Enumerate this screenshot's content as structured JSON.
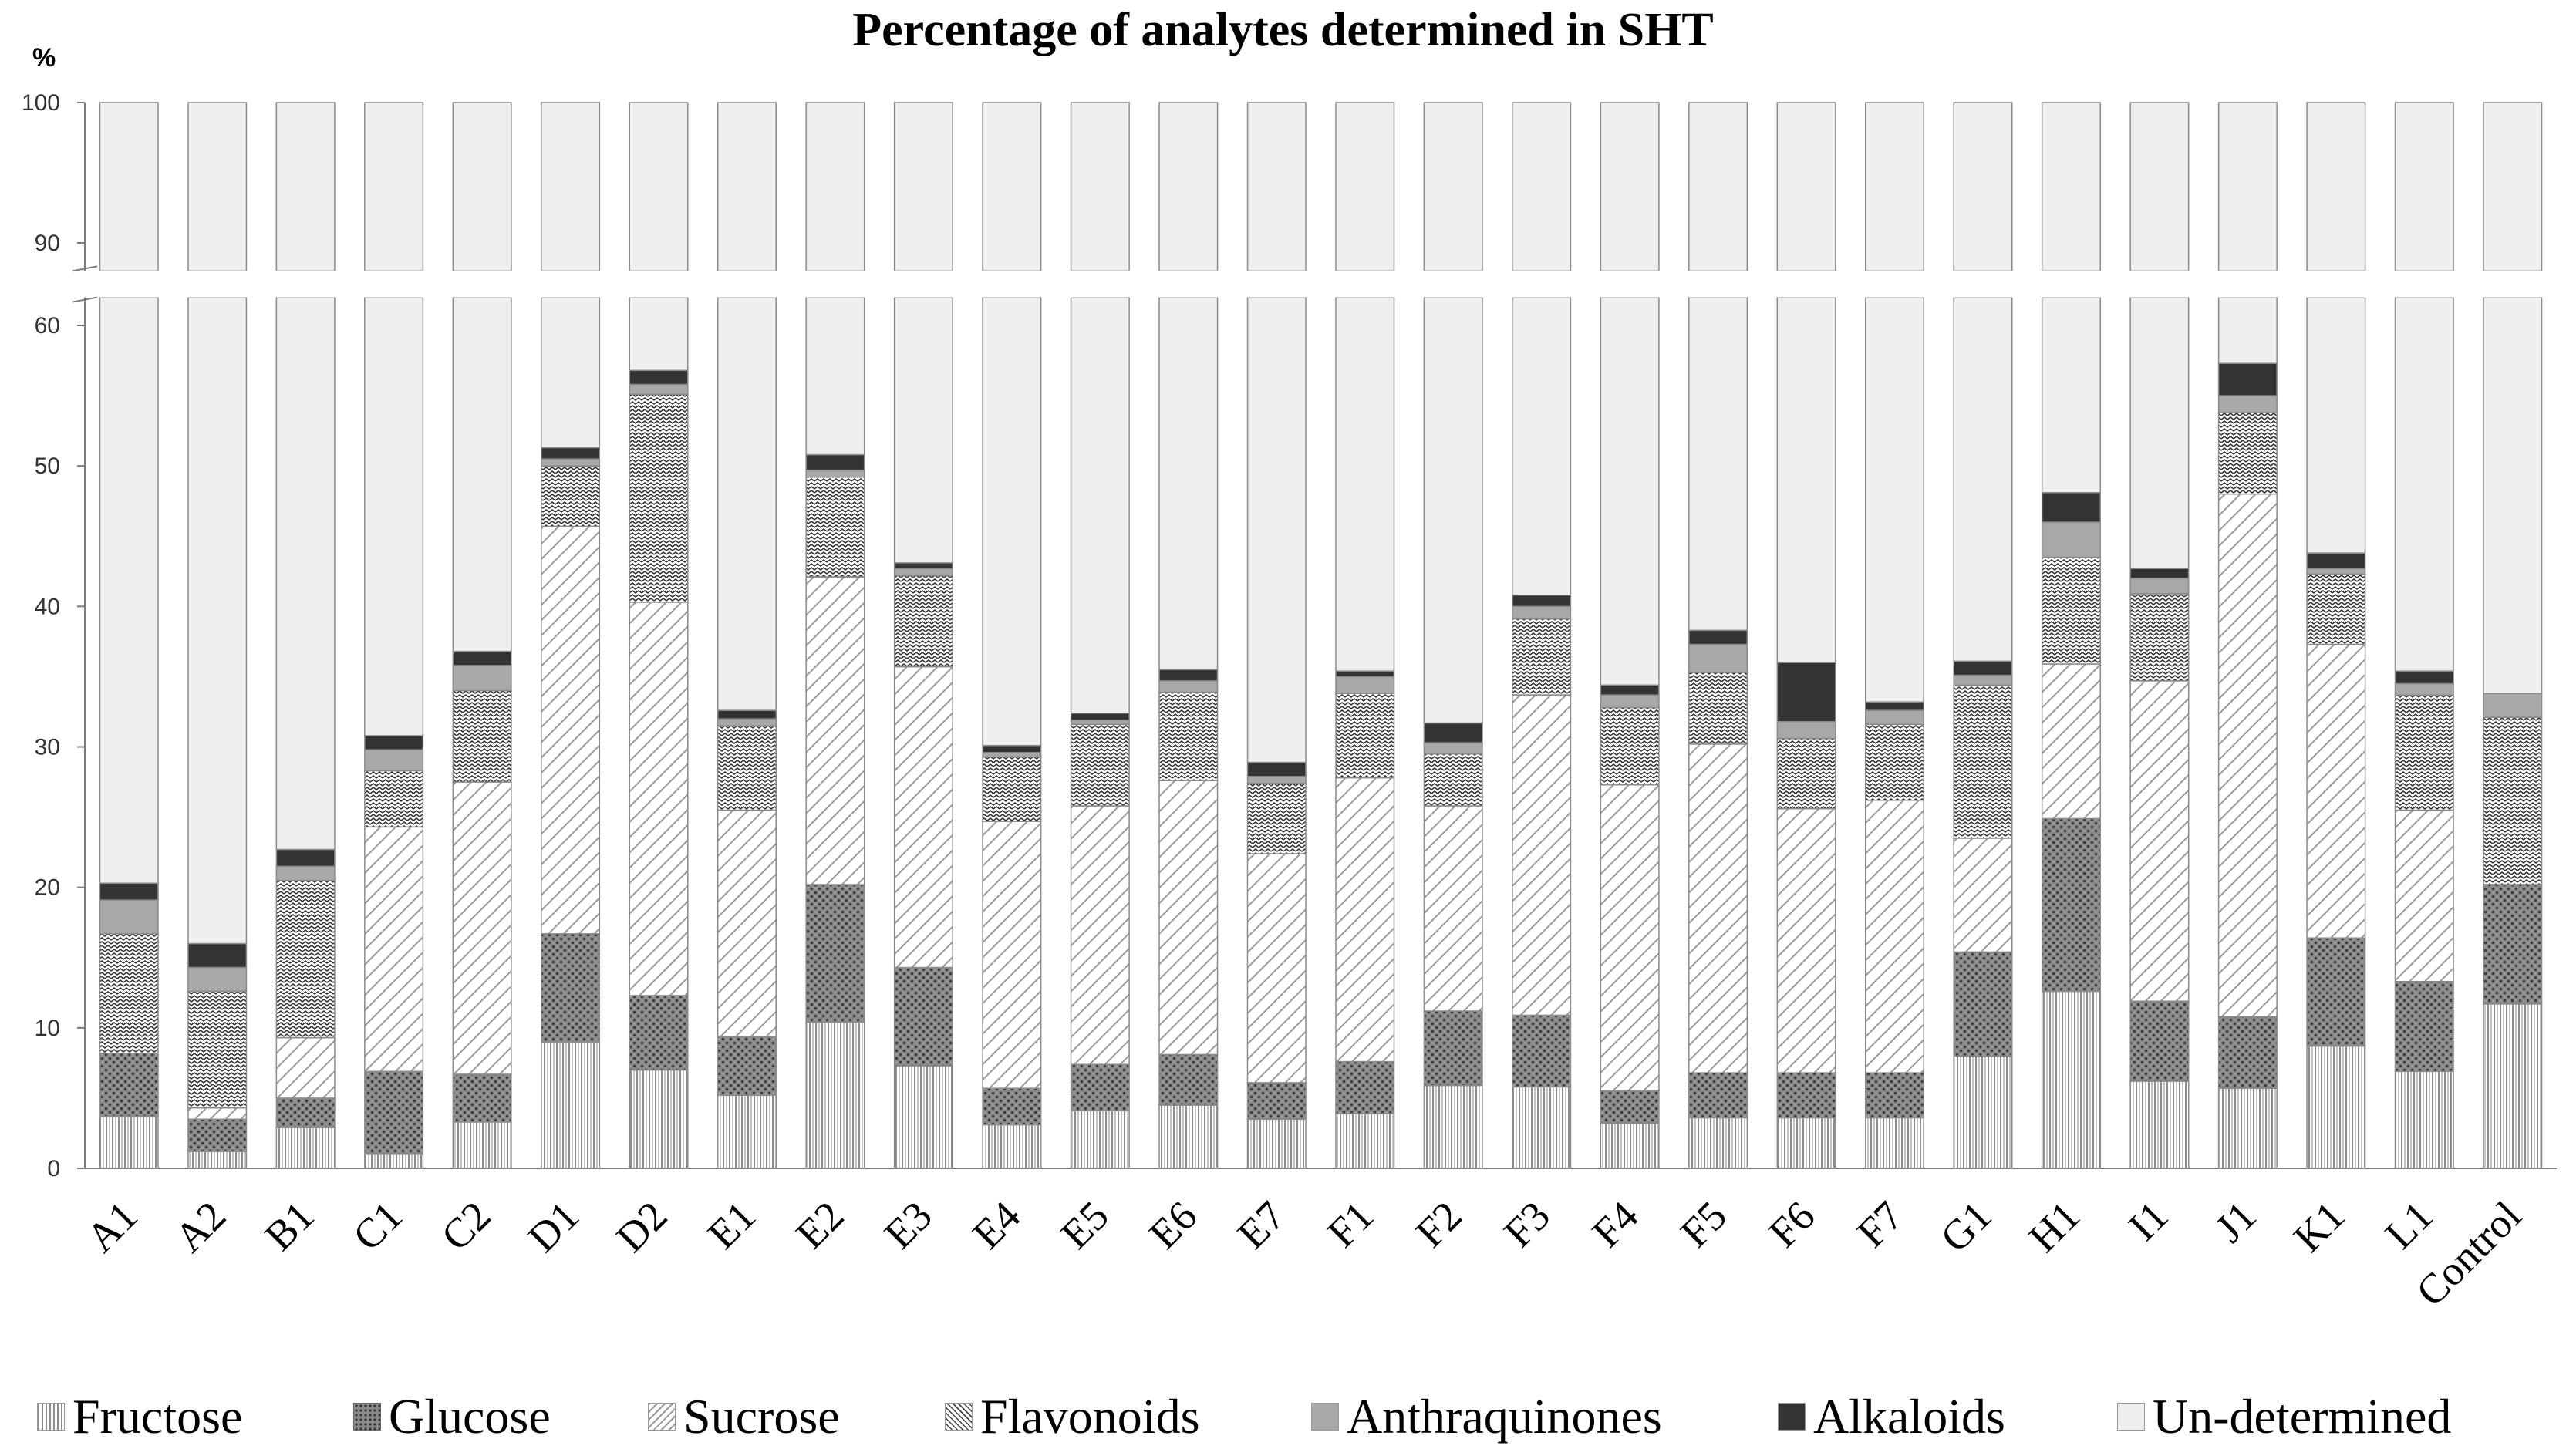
{
  "chart_data": {
    "type": "bar",
    "stacked": true,
    "title": "Percentage of analytes determined in SHT",
    "ylabel": "%",
    "xlabel": "",
    "ylim": [
      0,
      100
    ],
    "axis_break": [
      62,
      88
    ],
    "y_ticks_lower": [
      0,
      10,
      20,
      30,
      40,
      50,
      60
    ],
    "y_ticks_upper": [
      90,
      100
    ],
    "categories": [
      "A1",
      "A2",
      "B1",
      "C1",
      "C2",
      "D1",
      "D2",
      "E1",
      "E2",
      "E3",
      "E4",
      "E5",
      "E6",
      "E7",
      "F1",
      "F2",
      "F3",
      "F4",
      "F5",
      "F6",
      "F7",
      "G1",
      "H1",
      "I1",
      "J1",
      "K1",
      "L1",
      "Control"
    ],
    "series": [
      {
        "name": "Fructose",
        "values": [
          3.7,
          1.2,
          2.9,
          1.0,
          3.3,
          9.0,
          7.0,
          5.2,
          10.4,
          7.3,
          3.1,
          4.1,
          4.5,
          3.5,
          3.9,
          5.9,
          5.8,
          3.2,
          3.6,
          3.6,
          3.6,
          8.0,
          12.6,
          6.2,
          5.7,
          8.7,
          6.9,
          11.7
        ]
      },
      {
        "name": "Glucose",
        "values": [
          4.5,
          2.3,
          2.1,
          5.9,
          3.4,
          7.7,
          5.3,
          4.2,
          9.8,
          7.0,
          2.6,
          3.3,
          3.6,
          2.6,
          3.7,
          5.3,
          5.1,
          2.3,
          3.2,
          3.2,
          3.2,
          7.4,
          12.3,
          5.7,
          5.1,
          7.7,
          6.4,
          8.5
        ]
      },
      {
        "name": "Sucrose",
        "values": [
          0.0,
          0.8,
          4.3,
          17.4,
          20.8,
          29.0,
          28.0,
          16.1,
          21.9,
          21.4,
          19.0,
          18.4,
          19.5,
          16.3,
          20.2,
          14.6,
          22.8,
          21.8,
          23.4,
          18.8,
          19.4,
          8.1,
          11.0,
          22.8,
          37.2,
          20.9,
          12.2,
          0.0
        ]
      },
      {
        "name": "Flavonoids",
        "values": [
          8.5,
          8.3,
          11.2,
          4.0,
          6.5,
          4.3,
          14.8,
          6.0,
          7.1,
          6.5,
          4.6,
          5.8,
          6.3,
          5.0,
          6.0,
          3.7,
          5.4,
          5.5,
          5.1,
          5.0,
          5.4,
          10.9,
          7.6,
          6.2,
          5.8,
          5.0,
          8.2,
          11.9
        ]
      },
      {
        "name": "Anthraquinones",
        "values": [
          2.4,
          1.7,
          1.0,
          1.5,
          1.8,
          0.5,
          0.7,
          0.5,
          0.5,
          0.5,
          0.3,
          0.3,
          0.8,
          0.5,
          1.2,
          0.8,
          0.9,
          0.9,
          2.0,
          1.2,
          1.0,
          0.7,
          2.5,
          1.1,
          1.2,
          0.4,
          0.8,
          1.7
        ]
      },
      {
        "name": "Alkaloids",
        "values": [
          1.2,
          1.7,
          1.2,
          1.0,
          1.0,
          0.8,
          1.0,
          0.6,
          1.1,
          0.4,
          0.5,
          0.5,
          0.8,
          1.0,
          0.4,
          1.4,
          0.8,
          0.7,
          1.0,
          4.2,
          0.6,
          1.0,
          2.1,
          0.7,
          2.3,
          1.1,
          0.9,
          0.0
        ]
      },
      {
        "name": "Un-determined",
        "values": [
          79.7,
          84.0,
          77.3,
          69.2,
          63.2,
          48.7,
          43.2,
          67.4,
          49.2,
          56.9,
          69.9,
          67.6,
          64.5,
          71.1,
          64.6,
          68.3,
          59.2,
          65.6,
          61.7,
          64.0,
          66.8,
          63.9,
          51.9,
          57.3,
          42.7,
          56.2,
          64.6,
          66.2
        ]
      }
    ],
    "legend_position": "bottom",
    "grid": false
  },
  "styles": {
    "Fructose": {
      "fill": "#ffffff",
      "pattern": "vertical-lines",
      "ink": "#909090"
    },
    "Glucose": {
      "fill": "#7f7f7f",
      "pattern": "dots",
      "ink": "#404040"
    },
    "Sucrose": {
      "fill": "#ffffff",
      "pattern": "diagonal-lines",
      "ink": "#9a9a9a"
    },
    "Flavonoids": {
      "fill": "#ffffff",
      "pattern": "zigzag",
      "ink": "#404040"
    },
    "Anthraquinones": {
      "fill": "#a8a8a8",
      "pattern": "solid",
      "ink": "#a8a8a8"
    },
    "Alkaloids": {
      "fill": "#333333",
      "pattern": "solid",
      "ink": "#333333"
    },
    "Un-determined": {
      "fill": "#efefef",
      "pattern": "solid",
      "ink": "#efefef"
    }
  }
}
